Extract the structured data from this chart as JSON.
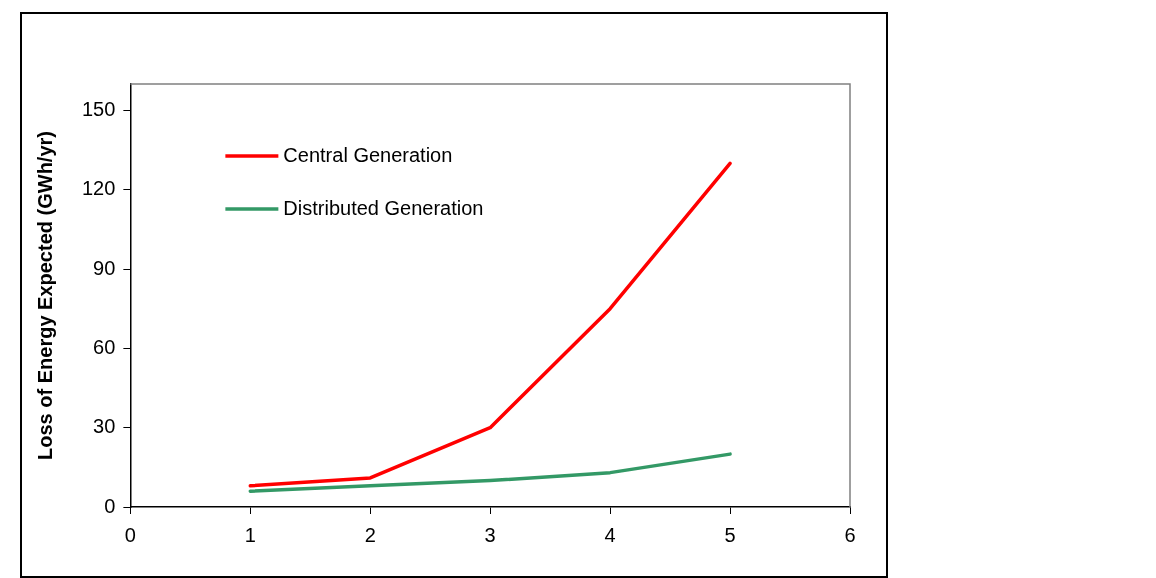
{
  "chart_data": {
    "type": "line",
    "ylabel": "Loss of Energy Expected (GWh/yr)",
    "x": [
      1,
      2,
      3,
      4,
      5
    ],
    "series": [
      {
        "name": "Central Generation",
        "color": "#ff0000",
        "values": [
          8,
          11,
          30,
          75,
          130
        ]
      },
      {
        "name": "Distributed Generation",
        "color": "#339966",
        "values": [
          6,
          8,
          10,
          13,
          20
        ]
      }
    ],
    "xlim": [
      0,
      6
    ],
    "xticks": [
      0,
      1,
      2,
      3,
      4,
      5,
      6
    ],
    "ylim": [
      0,
      160
    ],
    "yticks": [
      0,
      30,
      60,
      90,
      120,
      150
    ],
    "grid": false,
    "legend": "top left",
    "marker": "none",
    "line_style": "solid"
  }
}
